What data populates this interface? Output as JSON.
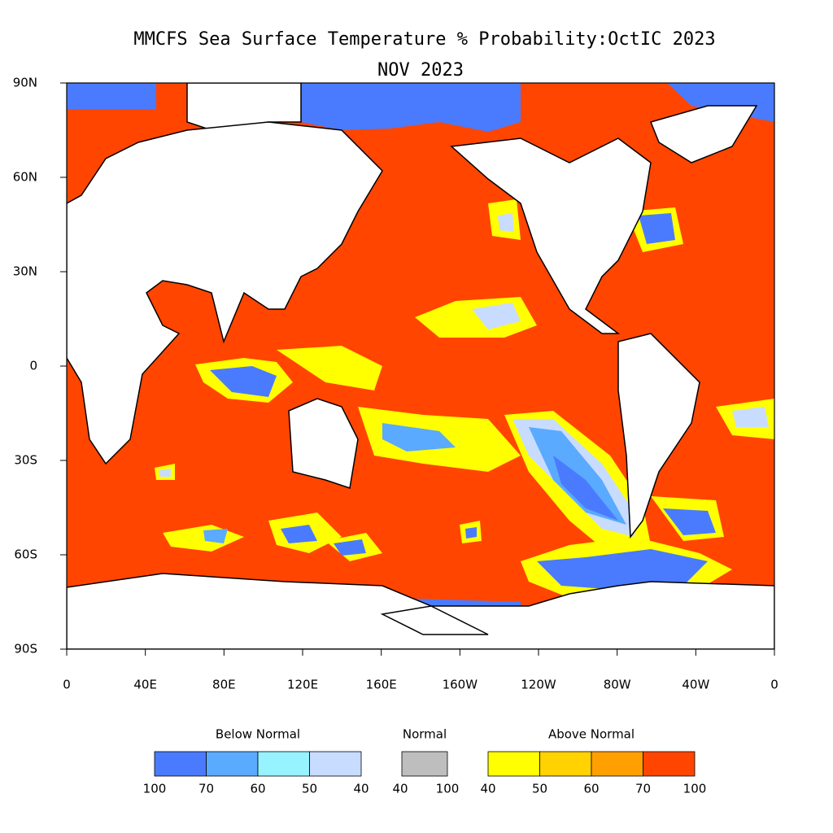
{
  "title": "MMCFS Sea Surface Temperature % Probability:OctIC 2023",
  "subtitle": "NOV 2023",
  "map": {
    "xticks": [
      "0",
      "40E",
      "80E",
      "120E",
      "160E",
      "160W",
      "120W",
      "80W",
      "40W",
      "0"
    ],
    "yticks": [
      "90N",
      "60N",
      "30N",
      "0",
      "30S",
      "60S",
      "90S"
    ]
  },
  "legend": [
    {
      "label": "Below Normal",
      "colors": [
        "#4a7bff",
        "#5aaaff",
        "#96f3ff",
        "#c8dcff"
      ],
      "ticks": [
        100,
        70,
        60,
        50,
        40
      ]
    },
    {
      "label": "Normal",
      "colors": [
        "#bebebe"
      ],
      "ticks": [
        40,
        100
      ]
    },
    {
      "label": "Above Normal",
      "colors": [
        "#ffff00",
        "#ffd200",
        "#ffa000",
        "#ff4500"
      ],
      "ticks": [
        40,
        50,
        60,
        70,
        100
      ]
    }
  ]
}
